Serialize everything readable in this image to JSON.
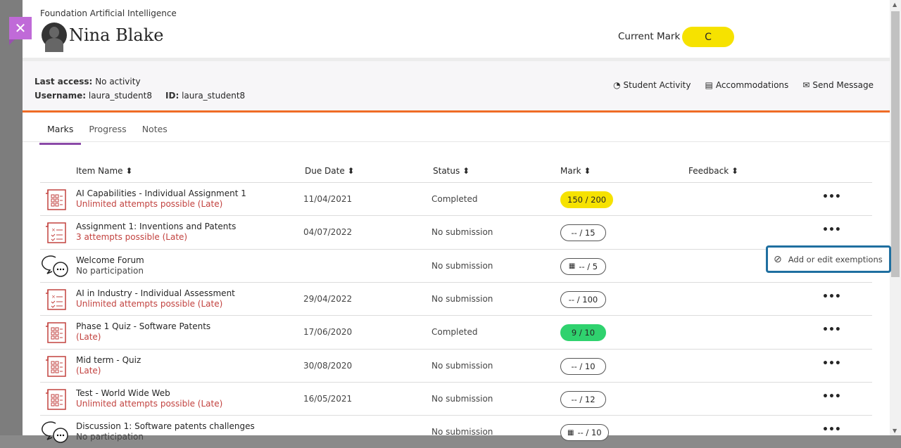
{
  "header": {
    "course": "Foundation Artificial Intelligence",
    "student_name": "Nina Blake",
    "current_mark_label": "Current Mark",
    "current_mark": "C"
  },
  "info": {
    "last_access_label": "Last access:",
    "last_access": "No activity",
    "username_label": "Username:",
    "username": "laura_student8",
    "id_label": "ID:",
    "id": "laura_student8"
  },
  "actions": [
    {
      "label": "Student Activity",
      "icon": "clock-pie-icon"
    },
    {
      "label": "Accommodations",
      "icon": "document-icon"
    },
    {
      "label": "Send Message",
      "icon": "envelope-icon"
    }
  ],
  "tabs": [
    {
      "label": "Marks",
      "active": true
    },
    {
      "label": "Progress"
    },
    {
      "label": "Notes"
    }
  ],
  "columns": [
    "Item Name",
    "Due Date",
    "Status",
    "Mark",
    "Feedback"
  ],
  "rows": [
    {
      "icon": "assignment-grid-icon",
      "title": "AI Capabilities - Individual Assignment 1",
      "sub": "Unlimited attempts possible (Late)",
      "due": "11/04/2021",
      "status": "Completed",
      "mark": "150 / 200",
      "mark_style": "yellow"
    },
    {
      "icon": "checklist-icon",
      "title": "Assignment 1: Inventions and Patents",
      "sub": "3 attempts possible (Late)",
      "due": "04/07/2022",
      "status": "No submission",
      "mark": "-- / 15",
      "mark_style": "outline"
    },
    {
      "icon": "discussion-icon",
      "title": "Welcome Forum",
      "sub": "No participation",
      "due": "",
      "status": "No submission",
      "mark": "-- / 5",
      "mark_style": "outline-grid"
    },
    {
      "icon": "checklist-icon",
      "title": "AI in Industry - Individual Assessment",
      "sub": "Unlimited attempts possible (Late)",
      "due": "29/04/2022",
      "status": "No submission",
      "mark": "-- / 100",
      "mark_style": "outline"
    },
    {
      "icon": "assignment-grid-icon",
      "title": "Phase 1 Quiz - Software Patents",
      "sub": "(Late)",
      "due": "17/06/2020",
      "status": "Completed",
      "mark": "9 / 10",
      "mark_style": "green"
    },
    {
      "icon": "assignment-grid-icon",
      "title": "Mid term - Quiz",
      "sub": "(Late)",
      "due": "30/08/2020",
      "status": "No submission",
      "mark": "-- / 10",
      "mark_style": "outline"
    },
    {
      "icon": "assignment-grid-icon",
      "title": "Test - World Wide Web",
      "sub": "Unlimited attempts possible (Late)",
      "due": "16/05/2021",
      "status": "No submission",
      "mark": "-- / 12",
      "mark_style": "outline"
    },
    {
      "icon": "discussion-icon",
      "title": "Discussion 1: Software patents challenges",
      "sub": "No participation",
      "due": "",
      "status": "No submission",
      "mark": "-- / 10",
      "mark_style": "outline-grid"
    }
  ],
  "popup": {
    "label": "Add or edit exemptions",
    "icon": "prohibited-icon"
  },
  "colors": {
    "accent": "#8b4aa8",
    "orange_rule": "#ef6c26",
    "late": "#c2423f",
    "mark_yellow": "#f6e200",
    "mark_green": "#2fd26e",
    "popup_border": "#1f6fa0"
  }
}
